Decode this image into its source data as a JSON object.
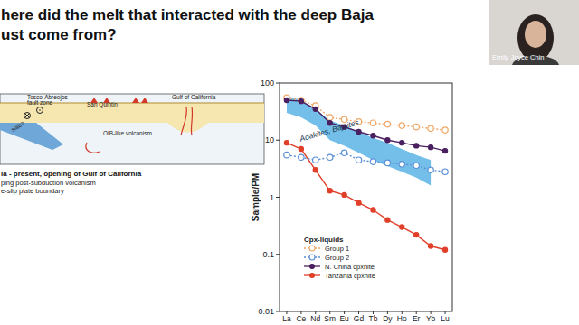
{
  "slide": {
    "title_lines": [
      "here did the melt that interacted with the deep Baja",
      "ust come from?"
    ],
    "diagram": {
      "labels": [
        "Tosco-Abreojos",
        "fault zone",
        "San Quintin",
        "OIB-like volcanism",
        "Gulf of California",
        "slab?"
      ],
      "caption": "ia - present, opening of Gulf of California",
      "bullets": [
        "ping post-subduction volcanism",
        "e-slip plate boundary"
      ]
    },
    "presenter": "Emily Joyce Chin"
  },
  "chart_data": {
    "type": "line",
    "y_label": "Sample/PM",
    "legend_title": "Cpx-liquids",
    "legend": "lower left",
    "log": "y",
    "ylim": [
      0.01,
      100
    ],
    "yticks": [
      0.01,
      0.1,
      1,
      10,
      100
    ],
    "categories": [
      "La",
      "Ce",
      "Nd",
      "Sm",
      "Eu",
      "Gd",
      "Tb",
      "Dy",
      "Ho",
      "Er",
      "Yb",
      "Lu"
    ],
    "series": [
      {
        "name": "Adakites, Bajaites",
        "type": "band",
        "color": "#5ab4e5",
        "values": [
          60,
          50,
          35,
          22,
          18,
          14,
          11,
          9,
          7,
          5.5,
          4.5,
          null
        ],
        "lower": [
          30,
          25,
          18,
          10,
          8,
          6,
          4.5,
          3.5,
          2.8,
          2.2,
          1.6,
          null
        ]
      },
      {
        "name": "Group 1",
        "color": "#f0a868",
        "marker": "open-circle",
        "line_style": "dotted",
        "values": [
          55,
          50,
          40,
          25,
          23,
          21,
          20,
          19,
          18,
          17,
          16,
          15
        ]
      },
      {
        "name": "Group 2",
        "color": "#5b8fd6",
        "marker": "open-circle",
        "line_style": "dotted",
        "values": [
          5.5,
          5,
          4.5,
          5,
          6,
          4.5,
          4.2,
          4,
          3.8,
          3.6,
          3,
          2.8
        ]
      },
      {
        "name": "N. China cpxnite",
        "color": "#4a2060",
        "marker": "circle",
        "line_style": "solid",
        "values": [
          50,
          48,
          35,
          20,
          17,
          14,
          12,
          10,
          9,
          8,
          7.5,
          6.5
        ]
      },
      {
        "name": "Tanzania cpxnite",
        "color": "#e0402a",
        "marker": "circle",
        "line_style": "solid",
        "values": [
          9,
          7,
          3,
          1.3,
          1.1,
          0.8,
          0.6,
          0.4,
          0.3,
          0.22,
          0.14,
          0.12
        ]
      }
    ]
  }
}
